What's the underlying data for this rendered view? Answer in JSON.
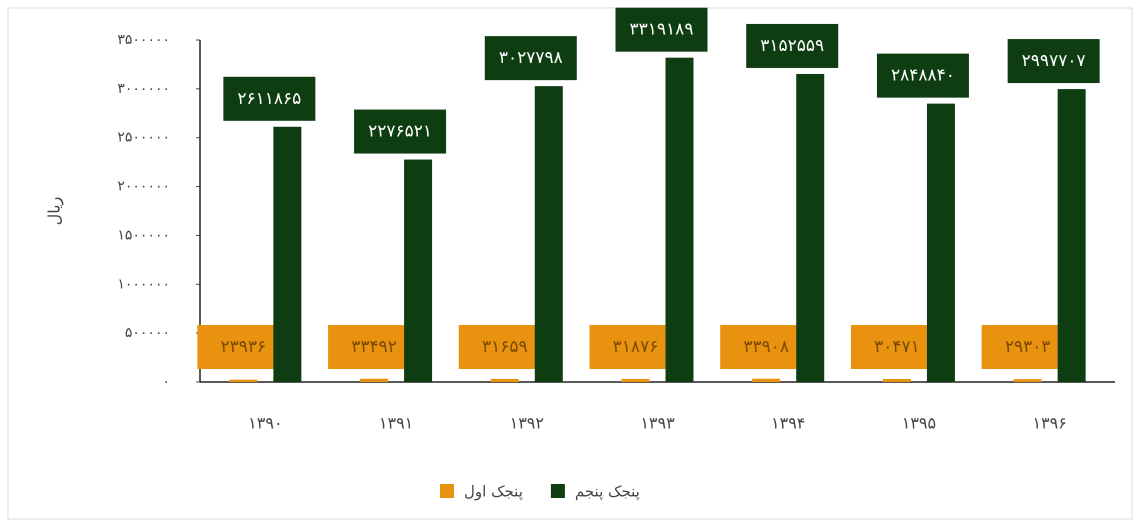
{
  "chart_data": {
    "type": "bar",
    "y_label": "ریال",
    "categories": [
      "۱۳۹۰",
      "۱۳۹۱",
      "۱۳۹۲",
      "۱۳۹۳",
      "۱۳۹۴",
      "۱۳۹۵",
      "۱۳۹۶"
    ],
    "series": [
      {
        "name": "پنجک اول",
        "color": "#e8920f",
        "values": [
          23936,
          33492,
          31659,
          31876,
          33908,
          30471,
          29303
        ],
        "value_labels": [
          "۲۳۹۳۶",
          "۳۳۴۹۲",
          "۳۱۶۵۹",
          "۳۱۸۷۶",
          "۳۳۹۰۸",
          "۳۰۴۷۱",
          "۲۹۳۰۳"
        ]
      },
      {
        "name": "پنجک پنجم",
        "color": "#0f3d12",
        "values": [
          2611865,
          2276521,
          3027798,
          3319189,
          3152559,
          2848840,
          2997707
        ],
        "value_labels": [
          "۲۶۱۱۸۶۵",
          "۲۲۷۶۵۲۱",
          "۳۰۲۷۷۹۸",
          "۳۳۱۹۱۸۹",
          "۳۱۵۲۵۵۹",
          "۲۸۴۸۸۴۰",
          "۲۹۹۷۷۰۷"
        ]
      }
    ],
    "ylim": [
      0,
      3500000
    ],
    "yticks": [
      {
        "value": 0,
        "label": "۰"
      },
      {
        "value": 500000,
        "label": "۵۰۰۰۰۰"
      },
      {
        "value": 1000000,
        "label": "۱۰۰۰۰۰۰"
      },
      {
        "value": 1500000,
        "label": "۱۵۰۰۰۰۰"
      },
      {
        "value": 2000000,
        "label": "۲۰۰۰۰۰۰"
      },
      {
        "value": 2500000,
        "label": "۲۵۰۰۰۰۰"
      },
      {
        "value": 3000000,
        "label": "۳۰۰۰۰۰۰"
      },
      {
        "value": 3500000,
        "label": "۳۵۰۰۰۰۰"
      }
    ],
    "legend": "bottom"
  }
}
